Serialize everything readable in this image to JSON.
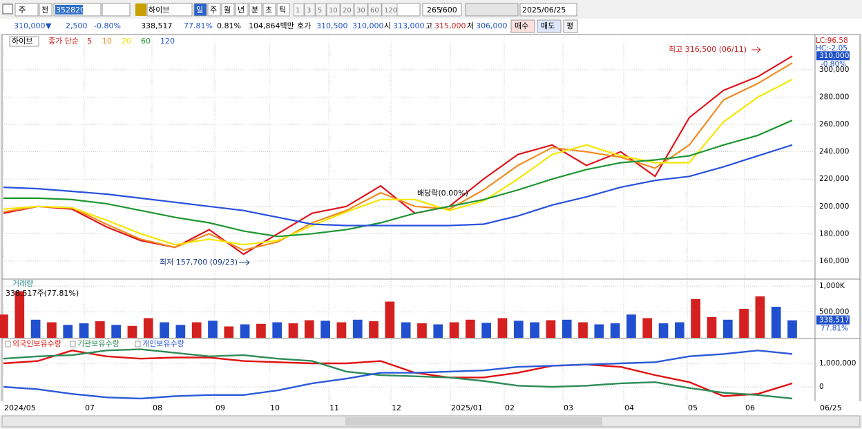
{
  "toolbar": {
    "market": "주",
    "prev": "전",
    "code": "352820",
    "name": "하이브",
    "periods": [
      "일",
      "주",
      "월",
      "년",
      "분",
      "초",
      "틱"
    ],
    "intervals": [
      "1",
      "3",
      "5",
      "10",
      "20",
      "30",
      "60",
      "120"
    ],
    "count": "265",
    "max": "/600",
    "date": "2025/06/25"
  },
  "quote": {
    "price": "310,000",
    "arrow": "▼",
    "change": "2,500",
    "change_pct": "-0.80%",
    "volume": "338,517",
    "volume_ratio": "77.81%",
    "turnover": "0.81%",
    "amount": "104,864백만",
    "bid_label": "호가",
    "ask": "310,500",
    "bid": "310,000",
    "open_label": "시",
    "open": "313,000",
    "high_label": "고",
    "high": "315,000",
    "low_label": "저",
    "low": "306,000",
    "buy": "매수",
    "sell": "매도",
    "avg": "평"
  },
  "x_axis": {
    "labels": [
      "2024/05",
      "07",
      "08",
      "09",
      "10",
      "11",
      "12",
      "2025/01",
      "02",
      "03",
      "04",
      "05",
      "06"
    ],
    "end": "06/25"
  },
  "chart_data": [
    {
      "type": "line",
      "name": "하이브",
      "ma_label": "종가 단순",
      "series": [
        {
          "name": "5",
          "color": "#e0141e",
          "values": [
            195000,
            200000,
            198000,
            185000,
            175000,
            170000,
            183000,
            165000,
            180000,
            195000,
            200000,
            215000,
            195000,
            200000,
            220000,
            238000,
            245000,
            230000,
            240000,
            222000,
            265000,
            285000,
            295000,
            310000
          ]
        },
        {
          "name": "10",
          "color": "#f08c1e",
          "values": [
            196000,
            200000,
            199000,
            187000,
            176000,
            170000,
            180000,
            168000,
            174000,
            188000,
            197000,
            210000,
            200000,
            198000,
            212000,
            230000,
            243000,
            240000,
            236000,
            228000,
            245000,
            278000,
            290000,
            305000
          ]
        },
        {
          "name": "20",
          "color": "#f5e600",
          "values": [
            198000,
            200000,
            199000,
            190000,
            180000,
            172000,
            176000,
            172000,
            175000,
            186000,
            196000,
            205000,
            205000,
            197000,
            204000,
            220000,
            238000,
            245000,
            237000,
            232000,
            232000,
            262000,
            280000,
            293000
          ]
        },
        {
          "name": "60",
          "color": "#1e9632",
          "values": [
            206000,
            206000,
            205000,
            202000,
            197000,
            192000,
            188000,
            182000,
            178000,
            180000,
            183000,
            188000,
            195000,
            200000,
            205000,
            212000,
            220000,
            227000,
            232000,
            234000,
            237000,
            245000,
            252000,
            263000
          ]
        },
        {
          "name": "120",
          "color": "#2850dc",
          "values": [
            214000,
            213000,
            211000,
            209000,
            206000,
            203000,
            200000,
            197000,
            192000,
            187000,
            186000,
            186000,
            186000,
            186000,
            187000,
            193000,
            201000,
            207000,
            214000,
            219000,
            222000,
            229000,
            237000,
            245000
          ]
        }
      ],
      "ylim": [
        147300,
        325800
      ],
      "yticks": [
        {
          "value": 300000,
          "label": "300,000"
        },
        {
          "value": 280000,
          "label": "280,000"
        },
        {
          "value": 260000,
          "label": "260,000"
        },
        {
          "value": 240000,
          "label": "240,000"
        },
        {
          "value": 220000,
          "label": "220,000"
        },
        {
          "value": 200000,
          "label": "200,000"
        },
        {
          "value": 180000,
          "label": "180,000"
        },
        {
          "value": 160000,
          "label": "160,000"
        }
      ],
      "annotations": {
        "high": "최고 316,500 (06/11)",
        "low": "최저 157,700 (09/23)",
        "dividend": "배당락(0.00%)",
        "lc": "LC:96.58",
        "hc": "HC:-2.05"
      },
      "last": {
        "value": 310000,
        "label": "310,000",
        "change": "-0.80%"
      }
    },
    {
      "type": "bar",
      "title": "거래량",
      "subtitle": "338,517주(77.81%)",
      "values": [
        450000,
        900000,
        350000,
        300000,
        250000,
        280000,
        320000,
        250000,
        230000,
        380000,
        300000,
        250000,
        300000,
        330000,
        220000,
        260000,
        270000,
        300000,
        280000,
        340000,
        330000,
        300000,
        350000,
        320000,
        700000,
        300000,
        280000,
        260000,
        300000,
        350000,
        290000,
        380000,
        330000,
        300000,
        340000,
        350000,
        300000,
        260000,
        280000,
        450000,
        380000,
        280000,
        300000,
        750000,
        400000,
        350000,
        560000,
        800000,
        600000,
        338517
      ],
      "colors": [
        "#d42020",
        "#d42020",
        "#2050d0",
        "#d42020",
        "#2050d0",
        "#2050d0",
        "#d42020",
        "#2050d0",
        "#d42020",
        "#d42020",
        "#2050d0",
        "#2050d0",
        "#d42020",
        "#2050d0",
        "#d42020",
        "#2050d0",
        "#d42020",
        "#2050d0",
        "#d42020",
        "#d42020",
        "#2050d0",
        "#d42020",
        "#2050d0",
        "#d42020",
        "#d42020",
        "#2050d0",
        "#d42020",
        "#2050d0",
        "#d42020",
        "#d42020",
        "#2050d0",
        "#d42020",
        "#2050d0",
        "#2050d0",
        "#d42020",
        "#2050d0",
        "#d42020",
        "#2050d0",
        "#2050d0",
        "#2050d0",
        "#d42020",
        "#2050d0",
        "#2050d0",
        "#d42020",
        "#d42020",
        "#2050d0",
        "#d42020",
        "#d42020",
        "#2050d0",
        "#2050d0"
      ],
      "ylim": [
        0,
        1135000
      ],
      "yticks": [
        {
          "value": 1000000,
          "label": "1,000K"
        },
        {
          "value": 500000,
          "label": "500,000"
        }
      ],
      "last": {
        "value": 338517,
        "label": "338,517",
        "ratio": "77.81%"
      }
    },
    {
      "type": "line",
      "series": [
        {
          "name": "외국인보유수량",
          "color": "#e01010",
          "values": [
            1000000,
            1100000,
            1550000,
            1300000,
            1200000,
            1250000,
            1250000,
            1100000,
            1050000,
            1000000,
            1000000,
            1100000,
            600000,
            400000,
            400000,
            600000,
            900000,
            950000,
            850000,
            500000,
            200000,
            -400000,
            -300000,
            150000
          ]
        },
        {
          "name": "기관보유수량",
          "color": "#2e8b57",
          "values": [
            1200000,
            1300000,
            1350000,
            1550000,
            1600000,
            1450000,
            1300000,
            1350000,
            1200000,
            1100000,
            650000,
            500000,
            450000,
            400000,
            250000,
            50000,
            0,
            50000,
            150000,
            200000,
            -50000,
            -250000,
            -350000,
            -500000
          ]
        },
        {
          "name": "개인보유수량",
          "color": "#2a5ad8",
          "values": [
            0,
            -100000,
            -300000,
            -450000,
            -500000,
            -400000,
            -350000,
            -350000,
            -150000,
            150000,
            350000,
            600000,
            600000,
            650000,
            700000,
            850000,
            900000,
            950000,
            1000000,
            1050000,
            1300000,
            1400000,
            1550000,
            1400000
          ]
        }
      ],
      "ylim": [
        -590000,
        2060000
      ],
      "yticks": [
        {
          "value": 1000000,
          "label": "1,000,000"
        },
        0
      ]
    }
  ]
}
